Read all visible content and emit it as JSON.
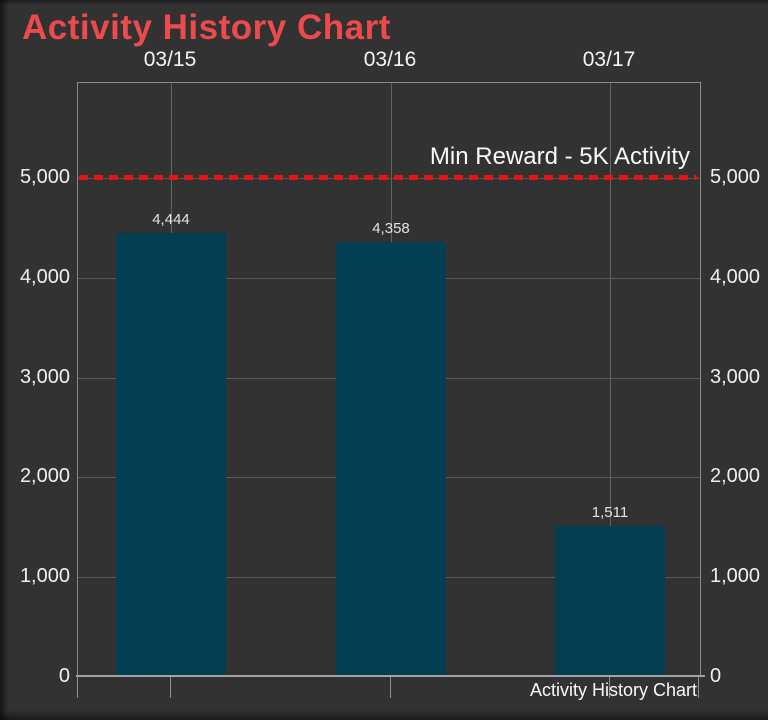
{
  "title": "Activity History Chart",
  "colors": {
    "background": "#323232",
    "title_red": "#ec4a4d",
    "bar_teal": "#043e52",
    "threshold_red": "#e41414",
    "grid_gray": "#5e5e5e",
    "text_white": "#f2f2f2"
  },
  "chart_data": {
    "type": "bar",
    "title": "Activity History Chart",
    "categories": [
      "03/15",
      "03/16",
      "03/17"
    ],
    "values": [
      4444,
      4358,
      1511
    ],
    "value_labels": [
      "4,444",
      "4,358",
      "1,511"
    ],
    "yticks": [
      0,
      1000,
      2000,
      3000,
      4000,
      5000
    ],
    "ytick_labels": [
      "0",
      "1,000",
      "2,000",
      "3,000",
      "4,000",
      "5,000"
    ],
    "ylim": [
      0,
      5950
    ],
    "grid": true,
    "axis_labels_both_sides": true,
    "threshold": {
      "value": 5000,
      "label": "Min Reward - 5K Activity"
    },
    "legend_footer": "Activity History Chart"
  }
}
